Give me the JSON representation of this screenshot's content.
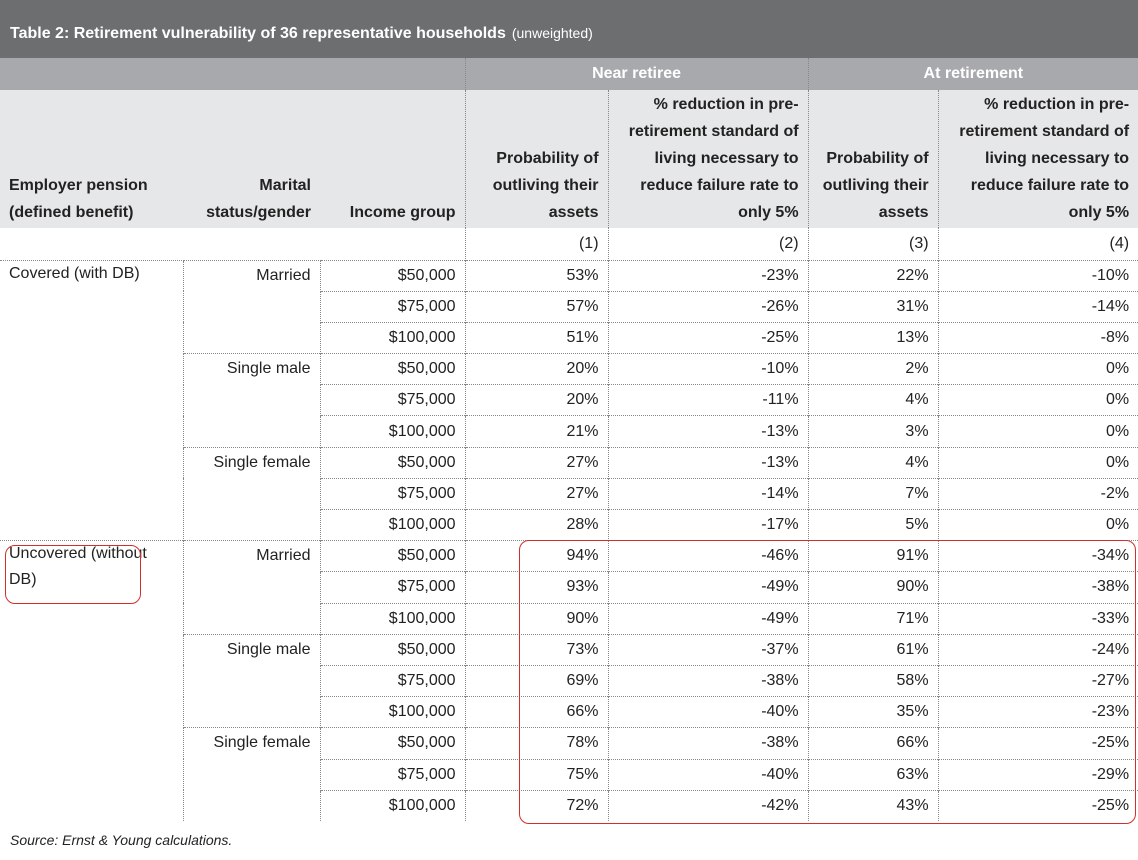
{
  "title": {
    "main": "Table 2: Retirement vulnerability of 36 representative households",
    "note": "(unweighted)"
  },
  "groups": [
    "Near retiree",
    "At retirement"
  ],
  "columns": [
    "Employer pension (defined benefit)",
    "Marital status/gender",
    "Income group",
    "Probability of outliving their assets",
    "% reduction in pre-retirement standard of living necessary to reduce failure rate to only 5%",
    "Probability of outliving their assets",
    "% reduction in pre-retirement standard of living necessary to reduce failure rate to only 5%"
  ],
  "column_numbers": [
    "(1)",
    "(2)",
    "(3)",
    "(4)"
  ],
  "sections": [
    {
      "pension": "Covered (with DB)",
      "subgroups": [
        {
          "marital": "Married",
          "rows": [
            [
              "$50,000",
              "53%",
              "-23%",
              "22%",
              "-10%"
            ],
            [
              "$75,000",
              "57%",
              "-26%",
              "31%",
              "-14%"
            ],
            [
              "$100,000",
              "51%",
              "-25%",
              "13%",
              "-8%"
            ]
          ]
        },
        {
          "marital": "Single male",
          "rows": [
            [
              "$50,000",
              "20%",
              "-10%",
              "2%",
              "0%"
            ],
            [
              "$75,000",
              "20%",
              "-11%",
              "4%",
              "0%"
            ],
            [
              "$100,000",
              "21%",
              "-13%",
              "3%",
              "0%"
            ]
          ]
        },
        {
          "marital": "Single female",
          "rows": [
            [
              "$50,000",
              "27%",
              "-13%",
              "4%",
              "0%"
            ],
            [
              "$75,000",
              "27%",
              "-14%",
              "7%",
              "-2%"
            ],
            [
              "$100,000",
              "28%",
              "-17%",
              "5%",
              "0%"
            ]
          ]
        }
      ]
    },
    {
      "pension": "Uncovered (without DB)",
      "subgroups": [
        {
          "marital": "Married",
          "rows": [
            [
              "$50,000",
              "94%",
              "-46%",
              "91%",
              "-34%"
            ],
            [
              "$75,000",
              "93%",
              "-49%",
              "90%",
              "-38%"
            ],
            [
              "$100,000",
              "90%",
              "-49%",
              "71%",
              "-33%"
            ]
          ]
        },
        {
          "marital": "Single male",
          "rows": [
            [
              "$50,000",
              "73%",
              "-37%",
              "61%",
              "-24%"
            ],
            [
              "$75,000",
              "69%",
              "-38%",
              "58%",
              "-27%"
            ],
            [
              "$100,000",
              "66%",
              "-40%",
              "35%",
              "-23%"
            ]
          ]
        },
        {
          "marital": "Single female",
          "rows": [
            [
              "$50,000",
              "78%",
              "-38%",
              "66%",
              "-25%"
            ],
            [
              "$75,000",
              "75%",
              "-40%",
              "63%",
              "-29%"
            ],
            [
              "$100,000",
              "72%",
              "-42%",
              "43%",
              "-25%"
            ]
          ]
        }
      ]
    }
  ],
  "source": "Source: Ernst & Young calculations."
}
